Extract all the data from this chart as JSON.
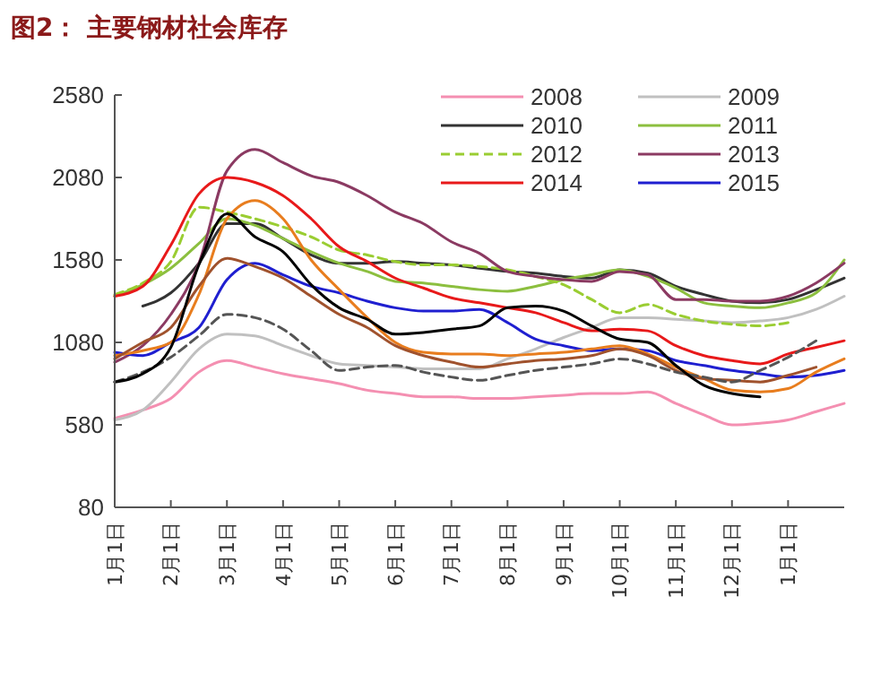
{
  "chart_data": {
    "type": "line",
    "title": "图2：  主要钢材社会库存",
    "categories": [
      "1月1日",
      null,
      "2月1日",
      null,
      "3月1日",
      null,
      "4月1日",
      null,
      "5月1日",
      null,
      "6月1日",
      null,
      "7月1日",
      null,
      "8月1日",
      null,
      "9月1日",
      null,
      "10月1日",
      null,
      "11月1日",
      null,
      "12月1日",
      null,
      "1月1日",
      null,
      null
    ],
    "ylim": [
      80,
      2580
    ],
    "yticks": [
      80,
      580,
      1080,
      1580,
      2080,
      2580
    ],
    "legend": "top right",
    "grid": false,
    "marker": "none",
    "series": [
      {
        "name": "2008",
        "color": "#f48fb1",
        "values": [
          620,
          670,
          740,
          900,
          970,
          930,
          890,
          860,
          830,
          790,
          770,
          750,
          750,
          740,
          740,
          750,
          760,
          770,
          770,
          780,
          710,
          640,
          580,
          590,
          610,
          660,
          710
        ]
      },
      {
        "name": "2009",
        "color": "#c0c0c0",
        "values": [
          610,
          670,
          840,
          1040,
          1130,
          1120,
          1060,
          1000,
          950,
          940,
          930,
          920,
          920,
          920,
          980,
          1040,
          1110,
          1170,
          1230,
          1230,
          1220,
          1210,
          1200,
          1210,
          1230,
          1280,
          1360
        ]
      },
      {
        "name": "2010",
        "color": "#333333",
        "values": [
          null,
          1300,
          1380,
          1560,
          1800,
          1800,
          1710,
          1610,
          1560,
          1560,
          1570,
          1560,
          1550,
          1530,
          1510,
          1500,
          1480,
          1470,
          1520,
          1500,
          1420,
          1370,
          1330,
          1320,
          1340,
          1400,
          1470
        ]
      },
      {
        "name": "2011",
        "color": "#8cbf3f",
        "values": [
          1360,
          1430,
          1530,
          1680,
          1830,
          1790,
          1710,
          1630,
          1560,
          1510,
          1450,
          1440,
          1420,
          1400,
          1390,
          1420,
          1460,
          1490,
          1520,
          1480,
          1410,
          1320,
          1300,
          1290,
          1320,
          1380,
          1580
        ]
      },
      {
        "name": "2012",
        "color": "#9acd32",
        "line_style": "dashed",
        "values": [
          1370,
          1440,
          1570,
          1900,
          1870,
          1830,
          1780,
          1720,
          1640,
          1610,
          1570,
          1550,
          1550,
          1540,
          1520,
          1480,
          1430,
          1340,
          1260,
          1310,
          1250,
          1210,
          1190,
          1180,
          1200,
          null,
          null
        ]
      },
      {
        "name": "2013",
        "color": "#8b3a62",
        "values": [
          960,
          1060,
          1250,
          1560,
          2120,
          2250,
          2170,
          2090,
          2050,
          1970,
          1870,
          1800,
          1690,
          1620,
          1510,
          1480,
          1460,
          1450,
          1510,
          1490,
          1340,
          1340,
          1330,
          1330,
          1360,
          1440,
          1560
        ]
      },
      {
        "name": "2014",
        "color": "#e8191a",
        "values": [
          1360,
          1420,
          1670,
          1980,
          2080,
          2050,
          1970,
          1830,
          1660,
          1570,
          1470,
          1410,
          1350,
          1320,
          1290,
          1260,
          1200,
          1150,
          1160,
          1150,
          1060,
          1000,
          970,
          950,
          1010,
          1050,
          1090
        ]
      },
      {
        "name": "2015",
        "color": "#1f1fd0",
        "values": [
          1020,
          1000,
          1080,
          1170,
          1460,
          1560,
          1490,
          1420,
          1380,
          1330,
          1290,
          1270,
          1270,
          1280,
          1200,
          1100,
          1060,
          1030,
          1040,
          1030,
          970,
          940,
          910,
          890,
          870,
          880,
          910
        ]
      },
      {
        "color": "#e87d1e",
        "values": [
          1000,
          1030,
          1080,
          1370,
          1830,
          1940,
          1830,
          1580,
          1400,
          1230,
          1080,
          1020,
          1010,
          1010,
          1000,
          1010,
          1020,
          1040,
          1060,
          1010,
          930,
          860,
          790,
          780,
          800,
          900,
          980
        ]
      },
      {
        "color": "#a0522d",
        "values": [
          980,
          1080,
          1170,
          1420,
          1590,
          1540,
          1470,
          1360,
          1250,
          1170,
          1060,
          1000,
          960,
          930,
          950,
          970,
          980,
          1000,
          1040,
          1000,
          910,
          860,
          850,
          840,
          880,
          930,
          null
        ]
      },
      {
        "color": "#555555",
        "line_style": "dashed",
        "values": [
          840,
          900,
          990,
          1120,
          1250,
          1230,
          1160,
          1030,
          910,
          930,
          940,
          900,
          870,
          850,
          880,
          910,
          930,
          950,
          980,
          950,
          900,
          870,
          840,
          910,
          990,
          1090,
          null
        ]
      },
      {
        "color": "#000000",
        "values": [
          840,
          890,
          1050,
          1550,
          1860,
          1720,
          1630,
          1430,
          1290,
          1220,
          1130,
          1140,
          1160,
          1180,
          1290,
          1300,
          1270,
          1180,
          1100,
          1080,
          940,
          820,
          770,
          750,
          null,
          null,
          null
        ]
      }
    ]
  }
}
